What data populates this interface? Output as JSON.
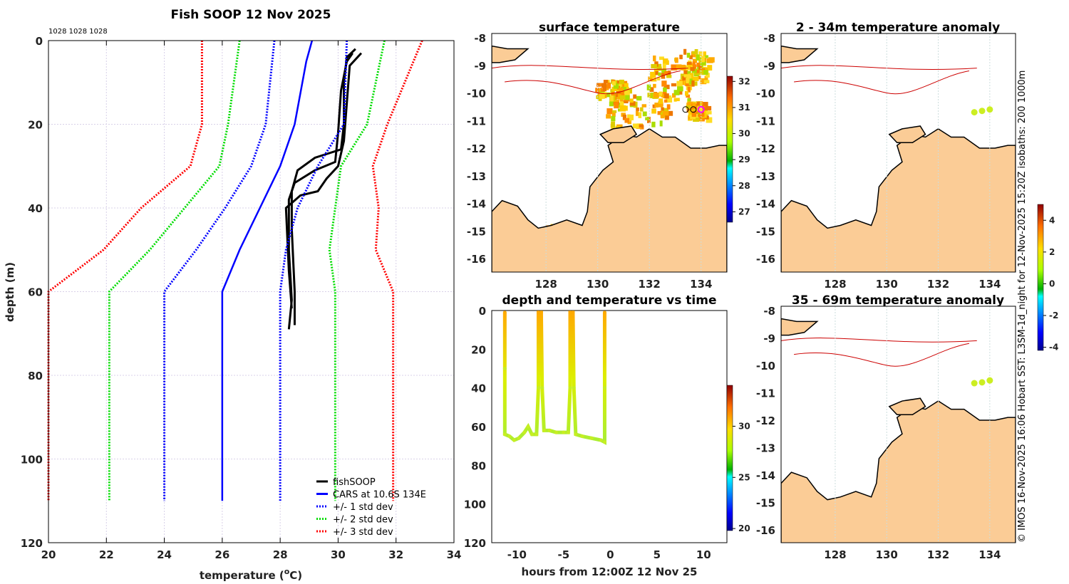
{
  "chart_data": [
    {
      "type": "line",
      "title": "Fish SOOP 12 Nov 2025",
      "annotation": "1028 1028 1028",
      "xlabel": "temperature (°C)",
      "ylabel": "depth (m)",
      "xlim": [
        20,
        34
      ],
      "ylim": [
        0,
        120
      ],
      "y_reversed": true,
      "xticks": [
        20,
        22,
        24,
        26,
        28,
        30,
        32,
        34
      ],
      "yticks": [
        0,
        20,
        40,
        60,
        80,
        100,
        120
      ],
      "grid": true,
      "legend_position": "bottom-right",
      "series": [
        {
          "name": "fishSOOP",
          "color": "#000000",
          "style": "solid",
          "profiles": [
            [
              [
                30.6,
                2
              ],
              [
                30.3,
                4
              ],
              [
                30.2,
                10
              ],
              [
                30.2,
                20
              ],
              [
                30.1,
                26
              ],
              [
                29.2,
                28
              ],
              [
                28.6,
                31
              ],
              [
                28.4,
                36
              ],
              [
                28.4,
                45
              ],
              [
                28.5,
                60
              ],
              [
                28.5,
                68
              ]
            ],
            [
              [
                30.5,
                3
              ],
              [
                30.3,
                5
              ],
              [
                30.1,
                12
              ],
              [
                30.0,
                22
              ],
              [
                29.9,
                29
              ],
              [
                29.2,
                31
              ],
              [
                28.5,
                34
              ],
              [
                28.3,
                38
              ],
              [
                28.3,
                50
              ],
              [
                28.4,
                62
              ],
              [
                28.3,
                69
              ]
            ],
            [
              [
                30.8,
                3
              ],
              [
                30.4,
                6
              ],
              [
                30.3,
                15
              ],
              [
                30.2,
                24
              ],
              [
                30.0,
                30
              ],
              [
                29.6,
                33
              ],
              [
                29.3,
                36
              ],
              [
                28.7,
                37
              ],
              [
                28.2,
                40
              ],
              [
                28.3,
                55
              ],
              [
                28.4,
                64
              ]
            ]
          ]
        },
        {
          "name": "CARS at 10.6S 134E",
          "color": "#0000ff",
          "style": "solid",
          "points": [
            [
              29.1,
              0
            ],
            [
              28.9,
              5
            ],
            [
              28.5,
              20
            ],
            [
              28.0,
              30
            ],
            [
              27.3,
              40
            ],
            [
              26.6,
              50
            ],
            [
              26.0,
              60
            ],
            [
              26.0,
              110
            ]
          ]
        },
        {
          "name": "+/- 1 std dev",
          "color": "#0000ff",
          "style": "dotted",
          "points": [
            [
              30.3,
              0
            ],
            [
              30.2,
              20
            ],
            [
              29.3,
              30
            ],
            [
              28.6,
              40
            ],
            [
              28.2,
              50
            ],
            [
              28.0,
              60
            ],
            [
              28.0,
              110
            ]
          ],
          "points_minus": [
            [
              27.8,
              0
            ],
            [
              27.5,
              20
            ],
            [
              27.0,
              30
            ],
            [
              26.1,
              40
            ],
            [
              25.1,
              50
            ],
            [
              24.0,
              60
            ],
            [
              24.0,
              110
            ]
          ]
        },
        {
          "name": "+/- 2 std dev",
          "color": "#00dd00",
          "style": "dotted",
          "points": [
            [
              31.6,
              0
            ],
            [
              31.0,
              20
            ],
            [
              30.1,
              30
            ],
            [
              29.9,
              40
            ],
            [
              29.7,
              50
            ],
            [
              29.9,
              60
            ],
            [
              29.9,
              110
            ]
          ],
          "points_minus": [
            [
              26.6,
              0
            ],
            [
              26.2,
              20
            ],
            [
              25.9,
              30
            ],
            [
              24.7,
              40
            ],
            [
              23.5,
              50
            ],
            [
              22.1,
              60
            ],
            [
              22.1,
              110
            ]
          ]
        },
        {
          "name": "+/- 3 std dev",
          "color": "#ff0000",
          "style": "dotted",
          "points": [
            [
              32.9,
              0
            ],
            [
              31.7,
              20
            ],
            [
              31.2,
              30
            ],
            [
              31.4,
              40
            ],
            [
              31.3,
              50
            ],
            [
              31.9,
              60
            ],
            [
              31.9,
              110
            ]
          ],
          "points_minus": [
            [
              25.3,
              0
            ],
            [
              25.3,
              20
            ],
            [
              24.9,
              30
            ],
            [
              23.2,
              40
            ],
            [
              21.9,
              50
            ],
            [
              20.0,
              60
            ],
            [
              20.0,
              110
            ]
          ]
        }
      ]
    },
    {
      "type": "map",
      "title": "surface temperature",
      "xticks": [
        128,
        130,
        132,
        134
      ],
      "yticks": [
        -8,
        -9,
        -10,
        -11,
        -12,
        -13,
        -14,
        -15,
        -16
      ],
      "colorbar": {
        "ticks": [
          32,
          31,
          30,
          29,
          28,
          27
        ],
        "range": [
          26.6,
          32.2
        ]
      }
    },
    {
      "type": "scatter",
      "title": "depth and temperature vs time",
      "xlabel": "hours from 12:00Z 12 Nov 25",
      "xlim": [
        -12.7,
        12.5
      ],
      "ylim": [
        0,
        120
      ],
      "y_reversed": true,
      "xticks": [
        -10,
        -5,
        0,
        5,
        10
      ],
      "yticks": [
        0,
        20,
        40,
        60,
        80,
        100,
        120
      ],
      "points": [
        [
          -11.3,
          1
        ],
        [
          -11.3,
          30
        ],
        [
          -11.3,
          64
        ],
        [
          -10.8,
          65
        ],
        [
          -10.3,
          67
        ],
        [
          -9.8,
          66
        ],
        [
          -9.2,
          63
        ],
        [
          -8.8,
          60
        ],
        [
          -8.4,
          64
        ],
        [
          -7.9,
          64
        ],
        [
          -7.7,
          40
        ],
        [
          -7.7,
          1
        ],
        [
          -7.4,
          1
        ],
        [
          -7.3,
          40
        ],
        [
          -7.1,
          62
        ],
        [
          -6.5,
          62
        ],
        [
          -5.8,
          63
        ],
        [
          -5.0,
          63
        ],
        [
          -4.5,
          63
        ],
        [
          -4.3,
          40
        ],
        [
          -4.3,
          1
        ],
        [
          -4.0,
          1
        ],
        [
          -3.9,
          40
        ],
        [
          -3.7,
          64
        ],
        [
          -3.0,
          65
        ],
        [
          -2.0,
          66
        ],
        [
          -1.0,
          67
        ],
        [
          -0.6,
          68
        ],
        [
          -0.6,
          40
        ],
        [
          -0.6,
          1
        ]
      ],
      "colorbar": {
        "ticks": [
          30,
          25,
          20
        ],
        "range": [
          19.8,
          34
        ]
      }
    },
    {
      "type": "map",
      "title": "2 - 34m temperature anomaly",
      "xticks": [
        128,
        130,
        132,
        134
      ],
      "yticks": [
        -8,
        -9,
        -10,
        -11,
        -12,
        -13,
        -14,
        -15,
        -16
      ],
      "points": [
        [
          133.4,
          -10.7
        ],
        [
          133.7,
          -10.65
        ],
        [
          134.0,
          -10.6
        ]
      ],
      "colorbar": {
        "ticks": [
          4,
          2,
          0,
          -2,
          -4
        ],
        "range": [
          -4.2,
          5
        ]
      }
    },
    {
      "type": "map",
      "title": "35 - 69m temperature anomaly",
      "xticks": [
        128,
        130,
        132,
        134
      ],
      "yticks": [
        -8,
        -9,
        -10,
        -11,
        -12,
        -13,
        -14,
        -15,
        -16
      ],
      "points": [
        [
          133.4,
          -10.65
        ],
        [
          133.7,
          -10.62
        ],
        [
          134.0,
          -10.55
        ]
      ]
    }
  ],
  "legend": [
    "fishSOOP",
    "CARS at 10.6S 134E",
    "+/- 1 std dev",
    "+/- 2 std dev",
    "+/- 3 std dev"
  ],
  "credit": "© IMOS 16-Nov-2025 16:06 Hobart SST: L3SM-1d_night for 12-Nov-2025 15:20Z isobaths: 200  1000m",
  "xlabel_main": "temperature (",
  "xlabel_unit": "o",
  "xlabel_end": "C)"
}
